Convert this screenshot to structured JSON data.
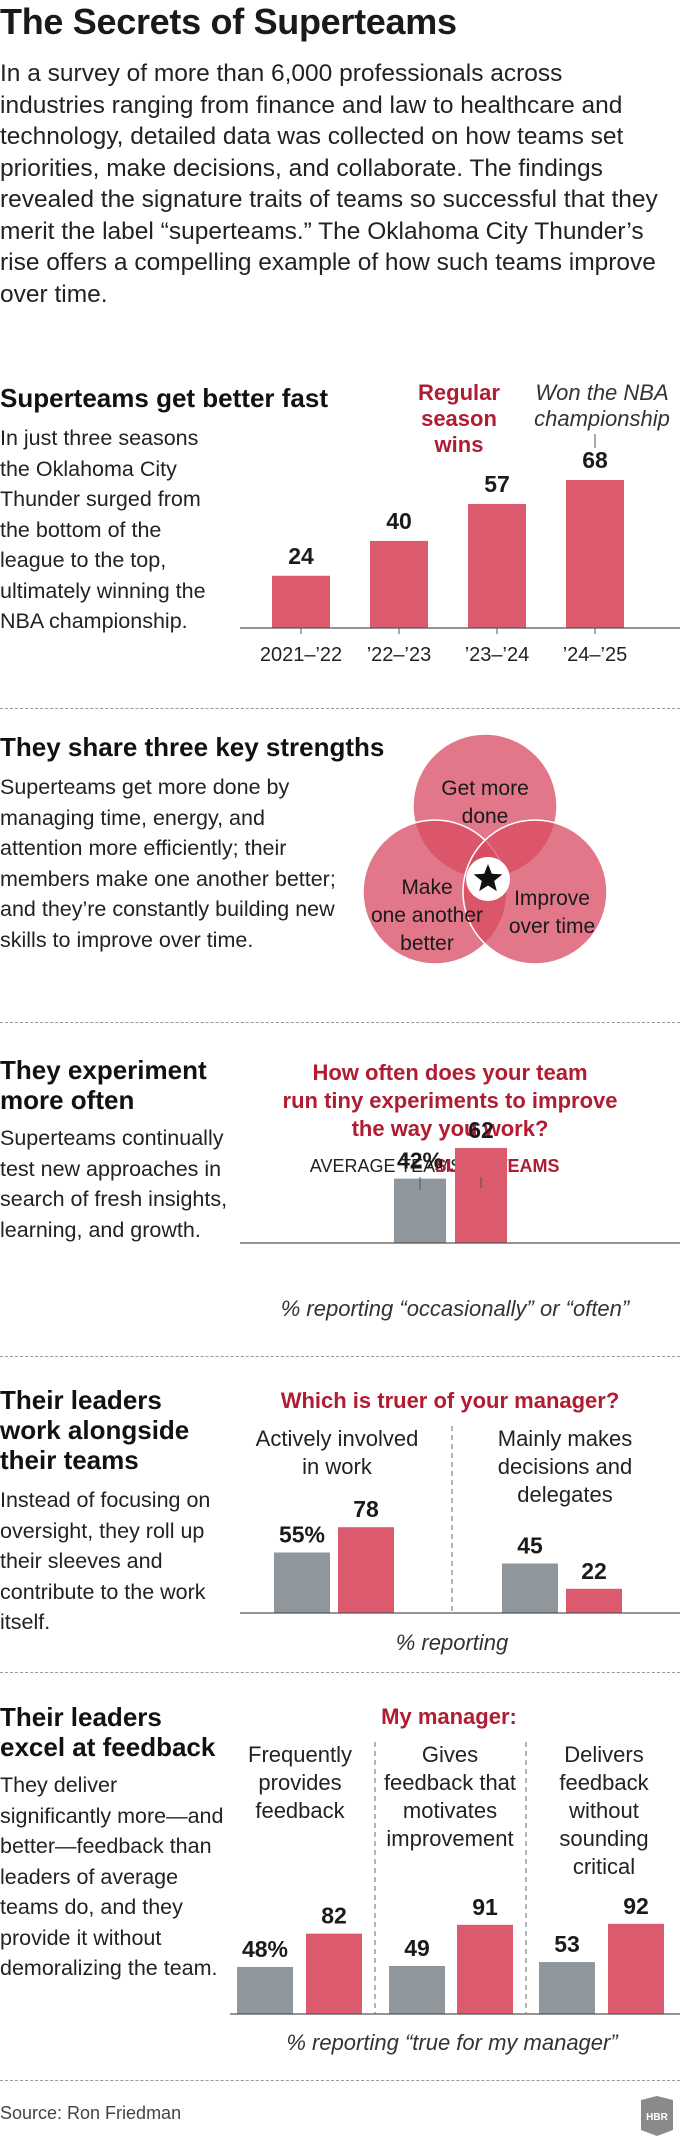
{
  "title": "The Secrets of Superteams",
  "intro": "In a survey of more than 6,000 professionals across industries ranging from finance and law to healthcare and technology, detailed data was collected on how teams set priorities, make decisions, and collaborate. The findings revealed the signature traits of teams so successful that they merit the label “superteams.” The Oklahoma City Thunder’s rise offers a compelling example of how such teams improve over time.",
  "colors": {
    "red": "#dc5a6e",
    "gray": "#8f969c",
    "dark_red": "#b01c31",
    "venn_fill": "#d84a62"
  },
  "sections": {
    "better_fast": {
      "heading": "Superteams get better fast",
      "body": "In just three seasons the Oklahoma City Thunder surged from the bottom of the league to the top, ultimately winning the NBA championship."
    },
    "strengths": {
      "heading": "They share three key strengths",
      "body": "Superteams get more done by managing time, energy, and attention more efficiently; their members make one another better; and they’re constantly building new skills to improve over time.",
      "venn": {
        "top": [
          "Get more",
          "done"
        ],
        "left": [
          "Make",
          "one another",
          "better"
        ],
        "right": [
          "Improve",
          "over time"
        ],
        "center_icon": "star-icon"
      }
    },
    "experiment": {
      "heading_lines": [
        "They experiment",
        "more often"
      ],
      "body": "Superteams continually test new approaches in search of fresh insights, learning, and growth."
    },
    "leaders_work": {
      "heading_lines": [
        "Their leaders",
        "work alongside",
        "their teams"
      ],
      "body": "Instead of focusing on oversight, they roll up their sleeves and contribute to the work itself."
    },
    "feedback": {
      "heading_lines": [
        "Their leaders",
        "excel at feedback"
      ],
      "body": "They deliver significantly more—and better—feedback than leaders of average teams do, and they provide it without demoralizing the team."
    }
  },
  "chart_data": [
    {
      "type": "bar",
      "title": [
        "Regular",
        "season",
        "wins"
      ],
      "categories": [
        "2021–’22",
        "’22–’23",
        "’23–’24",
        "’24–’25"
      ],
      "values": [
        24,
        40,
        57,
        68
      ],
      "value_labels": [
        "24",
        "40",
        "57",
        "68"
      ],
      "annotation": [
        "Won the NBA",
        "championship"
      ],
      "ylim": [
        0,
        68
      ]
    },
    {
      "type": "bar",
      "title": [
        "How often does your team",
        "run tiny experiments to improve",
        "the way you work?"
      ],
      "categories": [
        "AVERAGE TEAMS",
        "SUPERTEAMS"
      ],
      "values": [
        42,
        62
      ],
      "value_labels": [
        "42%",
        "62"
      ],
      "caption": "% reporting “occasionally” or “often”"
    },
    {
      "type": "bar",
      "title": "Which is truer of your manager?",
      "groups": [
        {
          "label": [
            "Actively involved",
            "in work"
          ],
          "values": [
            55,
            78
          ],
          "value_labels": [
            "55%",
            "78"
          ]
        },
        {
          "label": [
            "Mainly makes",
            "decisions and",
            "delegates"
          ],
          "values": [
            45,
            22
          ],
          "value_labels": [
            "45",
            "22"
          ]
        }
      ],
      "caption": "% reporting"
    },
    {
      "type": "bar",
      "title": "My manager:",
      "groups": [
        {
          "label": [
            "Frequently",
            "provides",
            "feedback"
          ],
          "values": [
            48,
            82
          ],
          "value_labels": [
            "48%",
            "82"
          ]
        },
        {
          "label": [
            "Gives",
            "feedback that",
            "motivates",
            "improvement"
          ],
          "values": [
            49,
            91
          ],
          "value_labels": [
            "49",
            "91"
          ]
        },
        {
          "label": [
            "Delivers",
            "feedback",
            "without",
            "sounding",
            "critical"
          ],
          "values": [
            53,
            92
          ],
          "value_labels": [
            "53",
            "92"
          ]
        }
      ],
      "caption": "% reporting “true for my manager”"
    }
  ],
  "source": "Source: Ron Friedman",
  "logo": "HBR"
}
